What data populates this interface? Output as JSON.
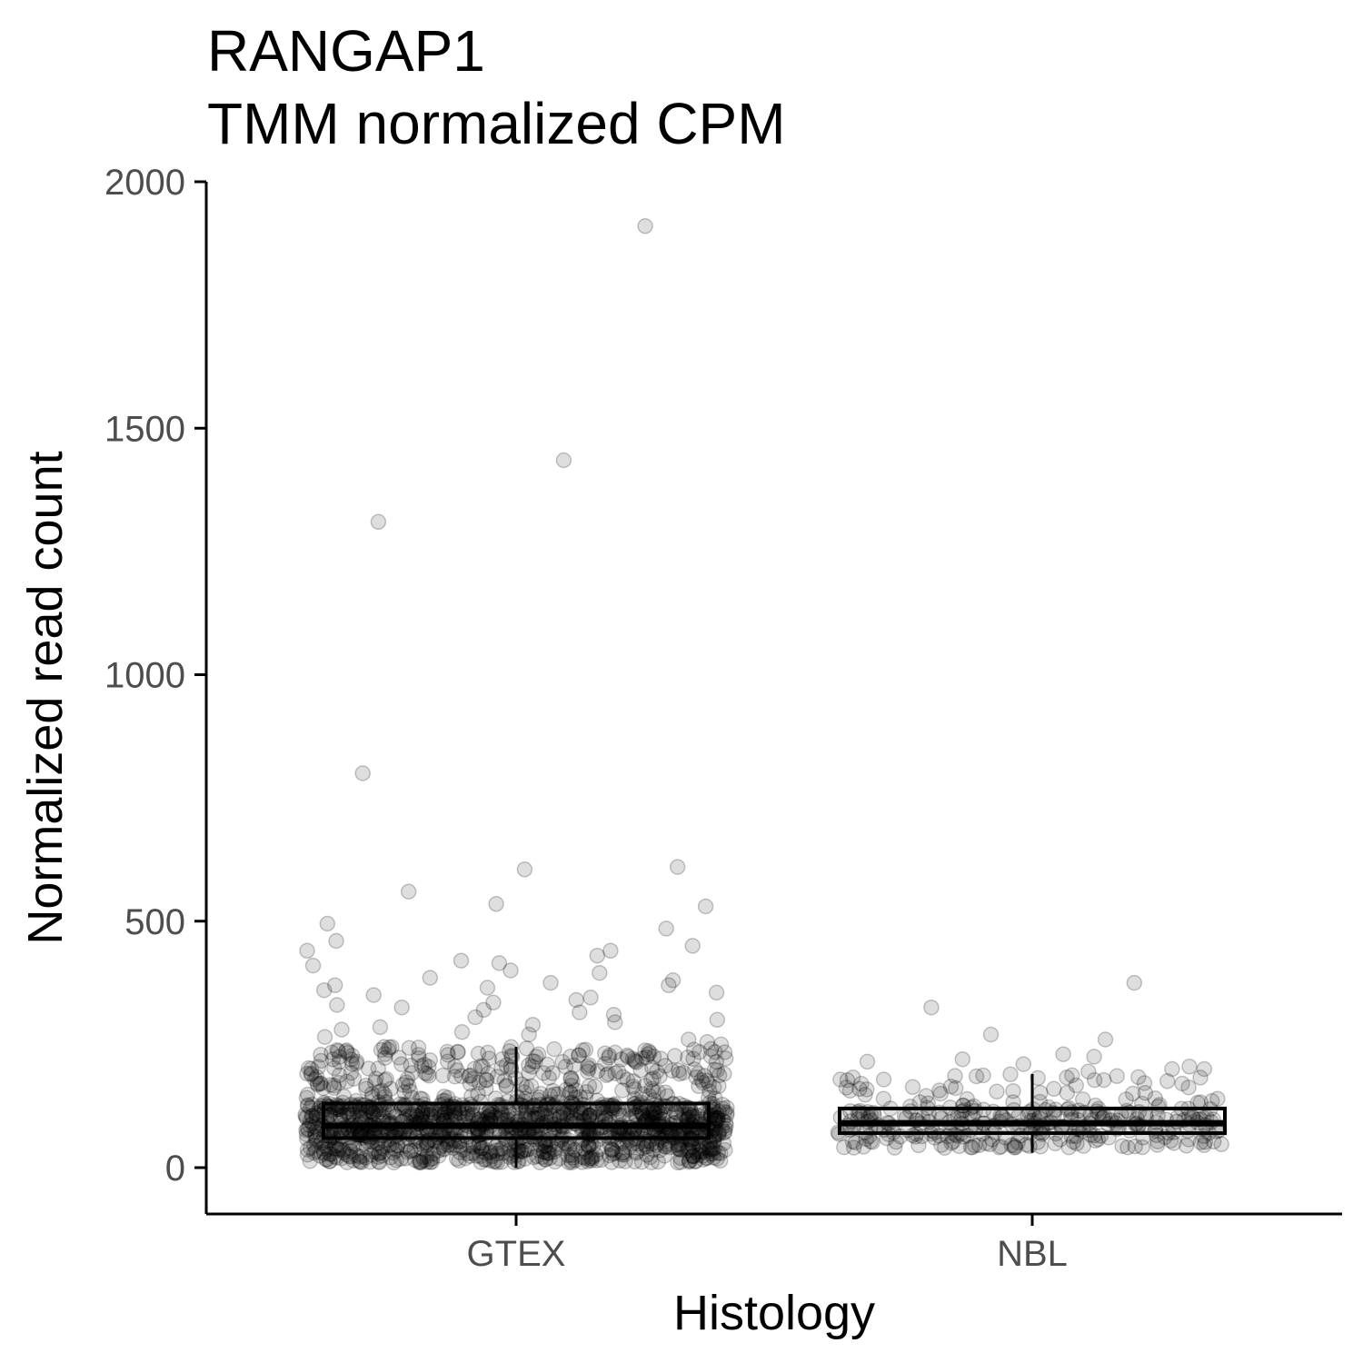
{
  "chart_data": {
    "type": "box",
    "title": "RANGAP1",
    "subtitle": "TMM normalized CPM",
    "xlabel": "Histology",
    "ylabel": "Normalized read count",
    "categories": [
      "GTEX",
      "NBL"
    ],
    "y_ticks": [
      "0",
      "500",
      "1000",
      "1500",
      "2000"
    ],
    "y_tick_values": [
      0,
      500,
      1000,
      1500,
      2000
    ],
    "ylim": [
      -95,
      2000
    ],
    "grid": false,
    "legend": "none",
    "point_color": "#000000",
    "series": [
      {
        "category": "GTEX",
        "box": {
          "q1": 60,
          "median": 85,
          "q3": 130,
          "whisker_low": 0,
          "whisker_high": 245
        },
        "outliers": [
          1910,
          1435,
          1310,
          800,
          610,
          605,
          560,
          535,
          530,
          495,
          485,
          460,
          450,
          440,
          440,
          430,
          420,
          415,
          410,
          400,
          395,
          385,
          380,
          375,
          370,
          370,
          365,
          360,
          355,
          350,
          345,
          340,
          335,
          330,
          325,
          320,
          315,
          310,
          305,
          300,
          295,
          290,
          285,
          280,
          275,
          270,
          265,
          260,
          255,
          250
        ]
      },
      {
        "category": "NBL",
        "box": {
          "q1": 70,
          "median": 90,
          "q3": 120,
          "whisker_low": 30,
          "whisker_high": 190
        },
        "outliers": [
          375,
          325,
          270,
          260,
          230,
          225,
          220,
          215,
          210,
          205,
          200,
          200,
          195
        ]
      }
    ]
  }
}
